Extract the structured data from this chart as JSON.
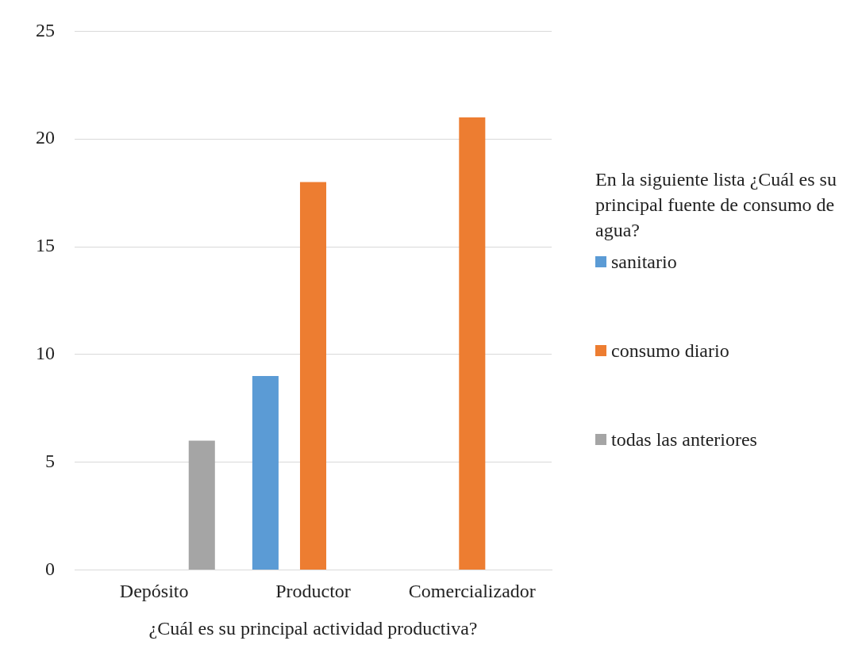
{
  "chart_data": {
    "type": "bar",
    "xlabel": "¿Cuál es su principal actividad productiva?",
    "legend_title": "En la siguiente lista ¿Cuál es su principal fuente de consumo de agua?",
    "categories": [
      "Depósito",
      "Productor",
      "Comercializador"
    ],
    "series": [
      {
        "name": "sanitario",
        "color": "#5b9bd5",
        "values": [
          null,
          9,
          null
        ]
      },
      {
        "name": "consumo diario",
        "color": "#ed7d31",
        "values": [
          null,
          18,
          21
        ]
      },
      {
        "name": "todas las anteriores",
        "color": "#a5a5a5",
        "values": [
          6,
          null,
          null
        ]
      }
    ],
    "ylim": [
      0,
      25
    ],
    "yticks": [
      0,
      5,
      10,
      15,
      20,
      25
    ],
    "grid": "y",
    "legend": "right"
  }
}
